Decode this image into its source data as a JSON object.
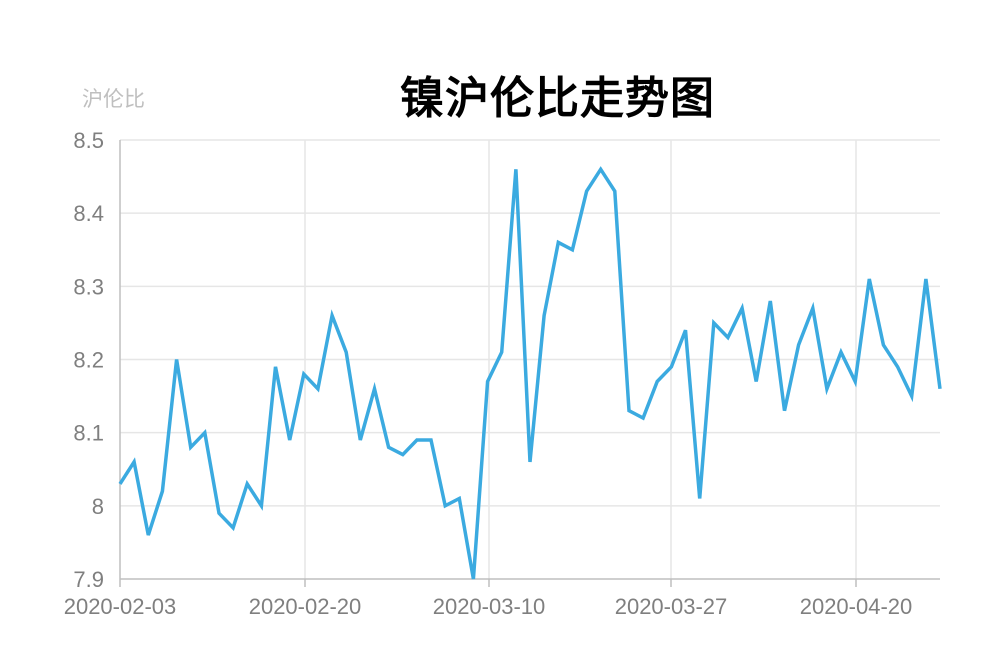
{
  "chart_data": {
    "type": "line",
    "title": "镍沪伦比走势图",
    "ylabel": "沪伦比",
    "xlabel": "",
    "ylim": [
      7.9,
      8.5
    ],
    "yticks": [
      "8.5",
      "8.4",
      "8.3",
      "8.2",
      "8.1",
      "8",
      "7.9"
    ],
    "xtick_labels": [
      "2020-02-03",
      "2020-02-20",
      "2020-03-10",
      "2020-03-27",
      "2020-04-20"
    ],
    "grid": true,
    "legend": "none",
    "line_color": "#3BAAE0",
    "series": [
      {
        "values": [
          8.03,
          8.06,
          7.96,
          8.02,
          8.2,
          8.08,
          8.1,
          7.99,
          7.97,
          8.03,
          8.0,
          8.19,
          8.09,
          8.18,
          8.16,
          8.26,
          8.21,
          8.09,
          8.16,
          8.08,
          8.07,
          8.09,
          8.09,
          8.0,
          8.01,
          7.9,
          8.17,
          8.21,
          8.46,
          8.06,
          8.26,
          8.36,
          8.35,
          8.43,
          8.46,
          8.43,
          8.13,
          8.12,
          8.17,
          8.19,
          8.24,
          8.01,
          8.25,
          8.23,
          8.27,
          8.17,
          8.28,
          8.13,
          8.22,
          8.27,
          8.16,
          8.21,
          8.17,
          8.31,
          8.22,
          8.19,
          8.15,
          8.31,
          8.16
        ]
      }
    ]
  }
}
